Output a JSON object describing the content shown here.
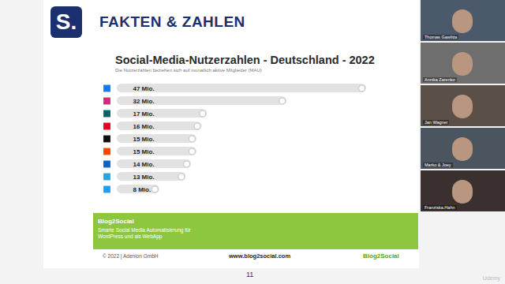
{
  "slide": {
    "logo": "S.",
    "heading": "FAKTEN & ZAHLEN",
    "banner": {
      "title": "Blog2Social",
      "lines": [
        "Smarte Social Media Automatisierung für",
        "WordPress und als WebApp"
      ]
    },
    "footer": {
      "copyright": "© 2022 | Adenion GmbH",
      "url": "www.blog2social.com",
      "logo": "Blog2Social"
    },
    "page": "11"
  },
  "chart_data": {
    "type": "bar",
    "title": "Social-Media-Nutzerzahlen - Deutschland - 2022",
    "subtitle": "Die Nutzerzahlen beziehen sich auf monatlich aktive Mitglieder (MAU)",
    "orientation": "horizontal",
    "categories": [
      null,
      null,
      null,
      null,
      null,
      null,
      null,
      null,
      null
    ],
    "values": [
      47,
      32,
      17,
      16,
      15,
      15,
      14,
      13,
      8
    ],
    "value_labels": [
      "47 Mio.",
      "32 Mio.",
      "17 Mio.",
      "16 Mio.",
      "15 Mio.",
      "15 Mio.",
      "14 Mio.",
      "13 Mio.",
      "8 Mio."
    ],
    "data_labels": true,
    "color": "#e2e2e2",
    "xlim": [
      0,
      47
    ],
    "tick_labels": false,
    "grid": false
  },
  "participants": [
    "Thomas Gawlitta",
    "Annika Zarenko",
    "Jan Wagner",
    "Marko & Joey",
    "Franziska.Hahn"
  ],
  "watermark": "Udemy"
}
